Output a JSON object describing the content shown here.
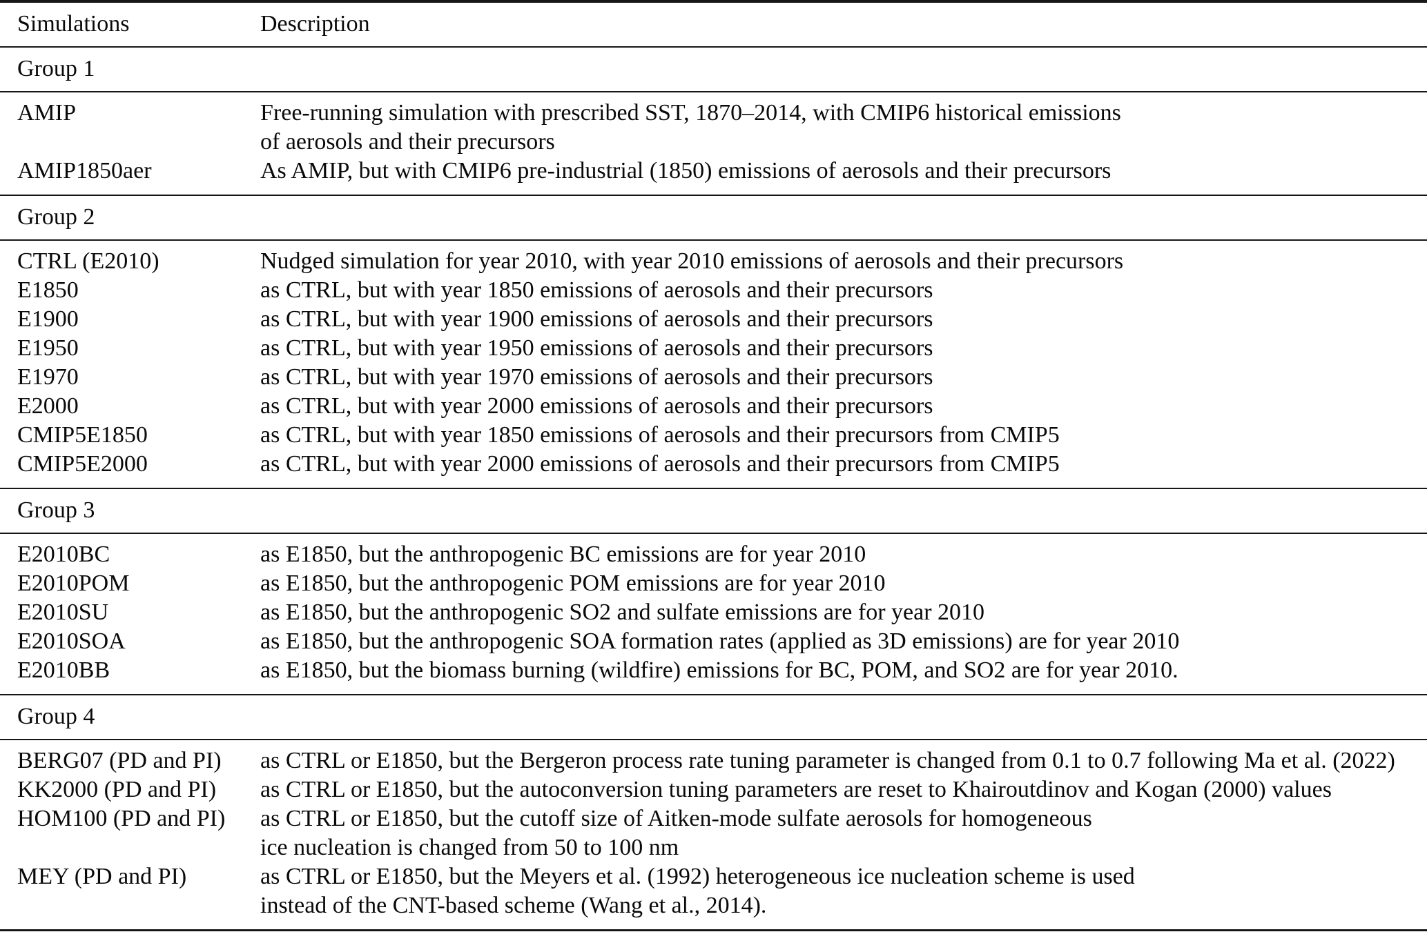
{
  "table": {
    "columns": [
      "Simulations",
      "Description"
    ],
    "groups": [
      {
        "label": "Group 1",
        "rows": [
          {
            "sim": "AMIP",
            "desc": "Free-running simulation with prescribed SST, 1870–2014, with CMIP6 historical emissions\nof aerosols and their precursors"
          },
          {
            "sim": "AMIP1850aer",
            "desc": "As AMIP, but with CMIP6 pre-industrial (1850) emissions of aerosols and their precursors"
          }
        ]
      },
      {
        "label": "Group 2",
        "rows": [
          {
            "sim": "CTRL (E2010)",
            "desc": "Nudged simulation for year 2010, with year 2010 emissions of aerosols and their precursors"
          },
          {
            "sim": "E1850",
            "desc": "as CTRL, but with year 1850 emissions of aerosols and their precursors"
          },
          {
            "sim": "E1900",
            "desc": "as CTRL, but with year 1900 emissions of aerosols and their precursors"
          },
          {
            "sim": "E1950",
            "desc": "as CTRL, but with year 1950 emissions of aerosols and their precursors"
          },
          {
            "sim": "E1970",
            "desc": "as CTRL, but with year 1970 emissions of aerosols and their precursors"
          },
          {
            "sim": "E2000",
            "desc": "as CTRL, but with year 2000 emissions of aerosols and their precursors"
          },
          {
            "sim": "CMIP5E1850",
            "desc": "as CTRL, but with year 1850 emissions of aerosols and their precursors from CMIP5"
          },
          {
            "sim": "CMIP5E2000",
            "desc": "as CTRL, but with year 2000 emissions of aerosols and their precursors from CMIP5"
          }
        ]
      },
      {
        "label": "Group 3",
        "rows": [
          {
            "sim": "E2010BC",
            "desc": "as E1850, but the anthropogenic BC emissions are for year 2010"
          },
          {
            "sim": "E2010POM",
            "desc": "as E1850, but the anthropogenic POM emissions are for year 2010"
          },
          {
            "sim": "E2010SU",
            "desc": "as E1850, but the anthropogenic SO2 and sulfate emissions are for year 2010"
          },
          {
            "sim": "E2010SOA",
            "desc": "as E1850, but the anthropogenic SOA formation rates (applied as 3D emissions) are for year 2010"
          },
          {
            "sim": "E2010BB",
            "desc": "as E1850, but the biomass burning (wildfire) emissions for BC, POM, and SO2 are for year 2010."
          }
        ]
      },
      {
        "label": "Group 4",
        "rows": [
          {
            "sim": "BERG07 (PD and PI)",
            "desc": "as CTRL or E1850, but the Bergeron process rate tuning parameter is changed from 0.1 to 0.7 following Ma et al. (2022)"
          },
          {
            "sim": "KK2000 (PD and PI)",
            "desc": "as CTRL or E1850, but the autoconversion tuning parameters are reset to Khairoutdinov and Kogan (2000) values"
          },
          {
            "sim": "HOM100 (PD and PI)",
            "desc": "as CTRL or E1850, but the cutoff size of Aitken-mode sulfate aerosols for homogeneous\nice nucleation is changed from 50 to 100 nm"
          },
          {
            "sim": "MEY (PD and PI)",
            "desc": "as CTRL or E1850, but the Meyers et al. (1992) heterogeneous ice nucleation scheme is used\ninstead of the CNT-based scheme (Wang et al., 2014)."
          }
        ]
      }
    ]
  }
}
